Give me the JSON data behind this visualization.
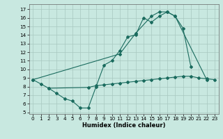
{
  "xlabel": "Humidex (Indice chaleur)",
  "background_color": "#c8e8e0",
  "grid_color": "#a8c8c0",
  "line_color": "#1a6b5e",
  "xlim": [
    -0.5,
    23.5
  ],
  "ylim": [
    4.8,
    17.6
  ],
  "yticks": [
    5,
    6,
    7,
    8,
    9,
    10,
    11,
    12,
    13,
    14,
    15,
    16,
    17
  ],
  "xticks": [
    0,
    1,
    2,
    3,
    4,
    5,
    6,
    7,
    8,
    9,
    10,
    11,
    12,
    13,
    14,
    15,
    16,
    17,
    18,
    19,
    20,
    21,
    22,
    23
  ],
  "curve1_x": [
    0,
    1,
    2,
    3,
    4,
    5,
    6,
    7,
    8,
    9,
    10,
    11,
    12,
    13,
    14,
    15,
    16,
    17,
    18,
    19,
    20
  ],
  "curve1_y": [
    8.8,
    8.3,
    7.8,
    7.2,
    6.6,
    6.3,
    5.5,
    5.5,
    8.0,
    10.5,
    11.0,
    12.2,
    13.8,
    14.0,
    16.0,
    15.5,
    16.2,
    16.7,
    16.2,
    14.8,
    10.3
  ],
  "curve2_x": [
    0,
    11,
    13,
    15,
    16,
    17,
    18,
    22
  ],
  "curve2_y": [
    8.8,
    11.8,
    14.2,
    16.2,
    16.7,
    16.7,
    16.2,
    8.8
  ],
  "curve3_x": [
    2,
    7,
    8,
    9,
    10,
    11,
    12,
    13,
    14,
    15,
    16,
    17,
    18,
    19,
    20,
    21,
    22,
    23
  ],
  "curve3_y": [
    7.8,
    7.9,
    8.1,
    8.2,
    8.3,
    8.4,
    8.5,
    8.6,
    8.7,
    8.8,
    8.9,
    9.0,
    9.1,
    9.2,
    9.2,
    9.0,
    8.9,
    8.8
  ],
  "xlabel_fontsize": 6.0,
  "tick_fontsize": 5.2
}
